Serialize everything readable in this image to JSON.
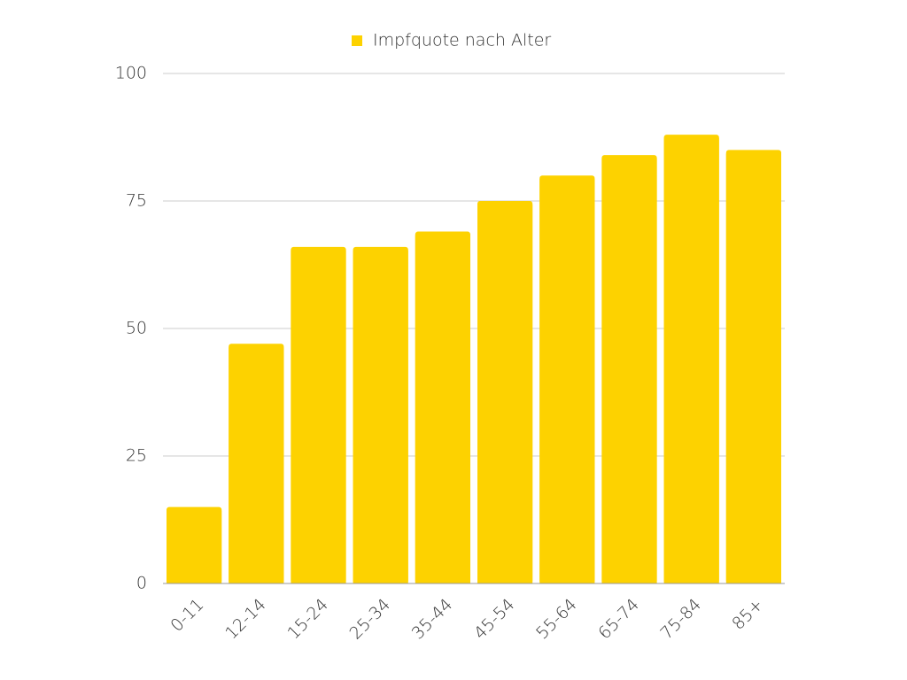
{
  "chart_data": {
    "type": "bar",
    "categories": [
      "0-11",
      "12-14",
      "15-24",
      "25-34",
      "35-44",
      "45-54",
      "55-64",
      "65-74",
      "75-84",
      "85+"
    ],
    "series": [
      {
        "name": "Impfquote nach Alter",
        "color": "#fdd200",
        "values": [
          15,
          47,
          66,
          66,
          69,
          75,
          80,
          84,
          88,
          85
        ]
      }
    ],
    "ylim": [
      0,
      100
    ],
    "yticks": [
      0,
      25,
      50,
      75,
      100
    ],
    "grid": true,
    "legend": "top"
  }
}
